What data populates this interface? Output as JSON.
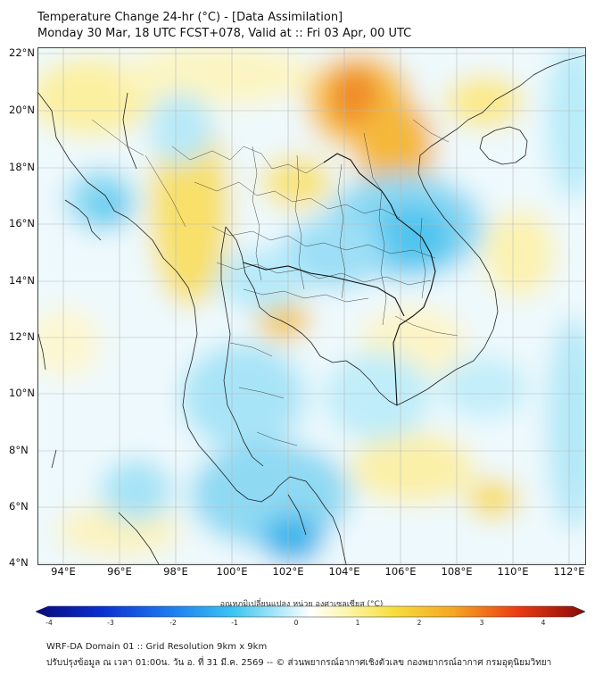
{
  "header": {
    "title": "Temperature Change 24-hr (°C) - [Data Assimilation]",
    "subtitle": "Monday 30 Mar, 18 UTC FCST+078, Valid at :: Fri 03 Apr, 00 UTC"
  },
  "map": {
    "lat_labels": [
      "22°N",
      "20°N",
      "18°N",
      "16°N",
      "14°N",
      "12°N",
      "10°N",
      "8°N",
      "6°N",
      "4°N"
    ],
    "lon_labels": [
      "94°E",
      "96°E",
      "98°E",
      "100°E",
      "102°E",
      "104°E",
      "106°E",
      "108°E",
      "110°E",
      "112°E"
    ],
    "lat_range": [
      4,
      22
    ],
    "lon_range": [
      93,
      112.5
    ]
  },
  "colorbar": {
    "title": "อุณหภูมิเปลี่ยนแปลง หน่วย องศาเซลเซียส (°C)",
    "ticks": [
      "-4",
      "-3",
      "-2",
      "-1",
      "0",
      "1",
      "2",
      "3",
      "4"
    ],
    "min": -4,
    "max": 4,
    "colors": [
      "#0a0a7a",
      "#0b2fd0",
      "#1e7ff0",
      "#3cc6f2",
      "#b7ecfb",
      "#ffffff",
      "#fdf7b4",
      "#f7df3d",
      "#f5a623",
      "#ea3a12",
      "#8a0a05"
    ]
  },
  "footer": {
    "line1": "WRF-DA Domain 01 :: Grid Resolution 9km x 9km",
    "line2": "ปรับปรุงข้อมูล ณ เวลา 01:00น. วัน อ. ที่ 31 มี.ค. 2569 -- © ส่วนพยากรณ์อากาศเชิงตัวเลข กองพยากรณ์อากาศ กรมอุตุนิยมวิทยา"
  }
}
